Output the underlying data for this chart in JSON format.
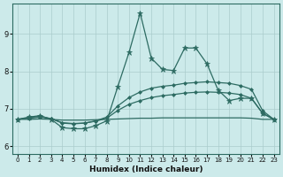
{
  "xlabel": "Humidex (Indice chaleur)",
  "bg_color": "#cceaea",
  "grid_color": "#aacccc",
  "line_color": "#2d6b62",
  "xlim": [
    -0.5,
    23.5
  ],
  "ylim": [
    5.8,
    9.8
  ],
  "xticks": [
    0,
    1,
    2,
    3,
    4,
    5,
    6,
    7,
    8,
    9,
    10,
    11,
    12,
    13,
    14,
    15,
    16,
    17,
    18,
    19,
    20,
    21,
    22,
    23
  ],
  "yticks": [
    6,
    7,
    8,
    9
  ],
  "series": [
    {
      "x": [
        0,
        1,
        2,
        3,
        4,
        5,
        6,
        7,
        8,
        9,
        10,
        11,
        12,
        13,
        14,
        15,
        16,
        17,
        18,
        19,
        20,
        21,
        22,
        23
      ],
      "y": [
        6.72,
        6.78,
        6.82,
        6.72,
        6.5,
        6.47,
        6.47,
        6.55,
        6.68,
        7.6,
        8.5,
        9.55,
        8.35,
        8.05,
        8.02,
        8.62,
        8.62,
        8.2,
        7.5,
        7.22,
        7.28,
        7.28,
        6.88,
        6.72
      ],
      "marker": "*",
      "ms": 4.5
    },
    {
      "x": [
        0,
        1,
        2,
        3,
        4,
        5,
        6,
        7,
        8,
        9,
        10,
        11,
        12,
        13,
        14,
        15,
        16,
        17,
        18,
        19,
        20,
        21,
        22,
        23
      ],
      "y": [
        6.72,
        6.76,
        6.8,
        6.74,
        6.62,
        6.6,
        6.62,
        6.68,
        6.78,
        7.08,
        7.3,
        7.45,
        7.55,
        7.6,
        7.63,
        7.68,
        7.7,
        7.72,
        7.7,
        7.68,
        7.62,
        7.52,
        6.95,
        6.72
      ],
      "marker": "D",
      "ms": 2.0
    },
    {
      "x": [
        0,
        1,
        2,
        3,
        4,
        5,
        6,
        7,
        8,
        9,
        10,
        11,
        12,
        13,
        14,
        15,
        16,
        17,
        18,
        19,
        20,
        21,
        22,
        23
      ],
      "y": [
        6.72,
        6.75,
        6.78,
        6.74,
        6.63,
        6.61,
        6.62,
        6.67,
        6.75,
        6.96,
        7.12,
        7.22,
        7.3,
        7.35,
        7.38,
        7.42,
        7.44,
        7.45,
        7.44,
        7.42,
        7.38,
        7.28,
        6.88,
        6.72
      ],
      "marker": "D",
      "ms": 2.0
    },
    {
      "x": [
        0,
        1,
        2,
        3,
        4,
        5,
        6,
        7,
        8,
        9,
        10,
        11,
        12,
        13,
        14,
        15,
        16,
        17,
        18,
        19,
        20,
        21,
        22,
        23
      ],
      "y": [
        6.72,
        6.72,
        6.73,
        6.72,
        6.7,
        6.7,
        6.7,
        6.71,
        6.72,
        6.73,
        6.74,
        6.75,
        6.75,
        6.76,
        6.76,
        6.76,
        6.76,
        6.76,
        6.76,
        6.76,
        6.76,
        6.75,
        6.72,
        6.72
      ],
      "marker": null,
      "ms": 0
    }
  ]
}
